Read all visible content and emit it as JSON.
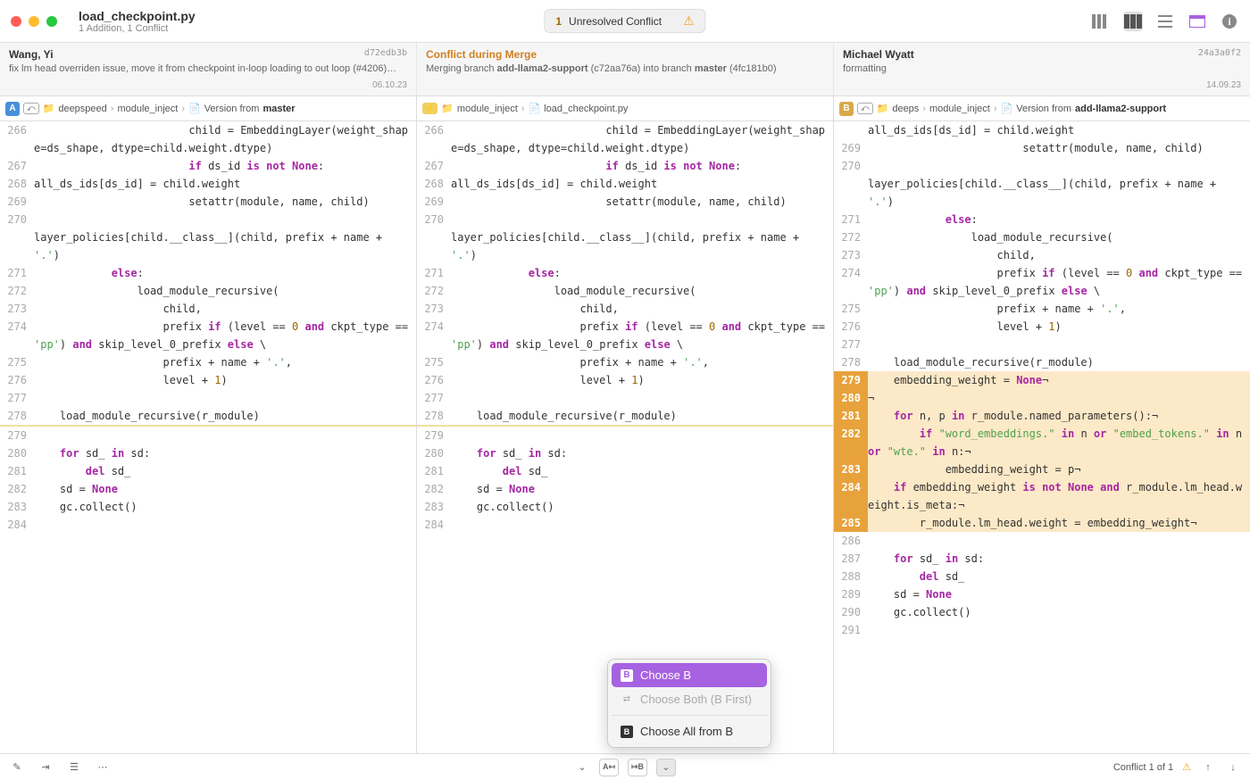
{
  "colors": {
    "traffic_close": "#ff5f57",
    "traffic_min": "#febc2e",
    "traffic_max": "#28c840",
    "warn": "#f0a020",
    "purple_sel": "#a662e0",
    "orange_hl_gutter": "#e8a23c",
    "orange_hl_bg": "#fce9c7",
    "badge_a": "#4a90d9",
    "badge_b": "#d9a94a",
    "keyword": "#a626a4",
    "string": "#50a14f",
    "constant": "#a626a4"
  },
  "title": {
    "filename": "load_checkpoint.py",
    "subtitle": "1 Addition, 1 Conflict"
  },
  "conflict_pill": {
    "count": "1",
    "label": "Unresolved Conflict"
  },
  "commits": {
    "left": {
      "author": "Wang, Yi",
      "message": "fix lm head overriden issue, move it from checkpoint in-loop loading to out loop (#4206)…",
      "hash": "d72edb3b",
      "date": "06.10.23"
    },
    "mid": {
      "title": "Conflict during Merge",
      "message_prefix": "Merging branch ",
      "branch1": "add-llama2-support",
      "branch1_hash": " (c72aa76a)",
      "into": " into branch ",
      "branch2": "master",
      "message_suffix": " (4fc181b0)"
    },
    "right": {
      "author": "Michael Wyatt",
      "message": "formatting",
      "hash": "24a3a0f2",
      "date": "14.09.23"
    }
  },
  "crumbs": {
    "left": {
      "badge": "A",
      "p1": "deepspeed",
      "p2": "module_inject",
      "p3_prefix": "Version from ",
      "p3_strong": "master"
    },
    "mid": {
      "p1": "module_inject",
      "p2": "load_checkpoint.py"
    },
    "right": {
      "badge": "B",
      "p1": "deeps",
      "p2": "module_inject",
      "p3_prefix": "Version from ",
      "p3_strong": "add-llama2-support"
    }
  },
  "code": {
    "left": [
      {
        "n": 266,
        "t": "                        child = EmbeddingLayer(weight_shape=ds_shape, dtype=child.weight.dtype)"
      },
      {
        "n": 267,
        "t": "                        <kw>if</kw> ds_id <kw>is not</kw> <const>None</const>:"
      },
      {
        "n": 268,
        "t": "all_ds_ids[ds_id] = child.weight"
      },
      {
        "n": 269,
        "t": "                        setattr(module, name, child)"
      },
      {
        "n": 270,
        "t": ""
      },
      {
        "n": "",
        "t": "layer_policies[child.__class__](child, prefix + name + <str>'.'</str>)"
      },
      {
        "n": 271,
        "t": "            <kw>else</kw>:"
      },
      {
        "n": 272,
        "t": "                load_module_recursive("
      },
      {
        "n": 273,
        "t": "                    child,"
      },
      {
        "n": 274,
        "t": "                    prefix <kw>if</kw> (level == <num>0</num> <kw>and</kw> ckpt_type == <str>'pp'</str>) <kw>and</kw> skip_level_0_prefix <kw>else</kw> \\"
      },
      {
        "n": 275,
        "t": "                    prefix + name + <str>'.'</str>,"
      },
      {
        "n": 276,
        "t": "                    level + <num>1</num>)"
      },
      {
        "n": 277,
        "t": ""
      },
      {
        "n": 278,
        "t": "    load_module_recursive(r_module)",
        "cls": "border-bottom-yellow"
      },
      {
        "n": 279,
        "t": ""
      },
      {
        "n": 280,
        "t": "    <kw>for</kw> sd_ <kw>in</kw> sd:"
      },
      {
        "n": 281,
        "t": "        <kw>del</kw> sd_"
      },
      {
        "n": 282,
        "t": "    sd = <const>None</const>"
      },
      {
        "n": 283,
        "t": "    gc.collect()"
      },
      {
        "n": 284,
        "t": ""
      }
    ],
    "mid": [
      {
        "n": 266,
        "t": "                        child = EmbeddingLayer(weight_shape=ds_shape, dtype=child.weight.dtype)"
      },
      {
        "n": 267,
        "t": "                        <kw>if</kw> ds_id <kw>is not</kw> <const>None</const>:"
      },
      {
        "n": 268,
        "t": "all_ds_ids[ds_id] = child.weight"
      },
      {
        "n": 269,
        "t": "                        setattr(module, name, child)"
      },
      {
        "n": 270,
        "t": ""
      },
      {
        "n": "",
        "t": "layer_policies[child.__class__](child, prefix + name + <str>'.'</str>)"
      },
      {
        "n": 271,
        "t": "            <kw>else</kw>:"
      },
      {
        "n": 272,
        "t": "                load_module_recursive("
      },
      {
        "n": 273,
        "t": "                    child,"
      },
      {
        "n": 274,
        "t": "                    prefix <kw>if</kw> (level == <num>0</num> <kw>and</kw> ckpt_type == <str>'pp'</str>) <kw>and</kw> skip_level_0_prefix <kw>else</kw> \\"
      },
      {
        "n": 275,
        "t": "                    prefix + name + <str>'.'</str>,"
      },
      {
        "n": 276,
        "t": "                    level + <num>1</num>)"
      },
      {
        "n": 277,
        "t": ""
      },
      {
        "n": 278,
        "t": "    load_module_recursive(r_module)",
        "cls": "border-bottom-yellow"
      },
      {
        "n": 279,
        "t": ""
      },
      {
        "n": 280,
        "t": "    <kw>for</kw> sd_ <kw>in</kw> sd:"
      },
      {
        "n": 281,
        "t": "        <kw>del</kw> sd_"
      },
      {
        "n": 282,
        "t": "    sd = <const>None</const>"
      },
      {
        "n": 283,
        "t": "    gc.collect()"
      },
      {
        "n": 284,
        "t": ""
      }
    ],
    "right": [
      {
        "n": "",
        "t": "all_ds_ids[ds_id] = child.weight"
      },
      {
        "n": 269,
        "t": "                        setattr(module, name, child)"
      },
      {
        "n": 270,
        "t": ""
      },
      {
        "n": "",
        "t": "layer_policies[child.__class__](child, prefix + name + <str>'.'</str>)"
      },
      {
        "n": 271,
        "t": "            <kw>else</kw>:"
      },
      {
        "n": 272,
        "t": "                load_module_recursive("
      },
      {
        "n": 273,
        "t": "                    child,"
      },
      {
        "n": 274,
        "t": "                    prefix <kw>if</kw> (level == <num>0</num> <kw>and</kw> ckpt_type == <str>'pp'</str>) <kw>and</kw> skip_level_0_prefix <kw>else</kw> \\"
      },
      {
        "n": 275,
        "t": "                    prefix + name + <str>'.'</str>,"
      },
      {
        "n": 276,
        "t": "                    level + <num>1</num>)"
      },
      {
        "n": 277,
        "t": ""
      },
      {
        "n": 278,
        "t": "    load_module_recursive(r_module)"
      },
      {
        "n": 279,
        "t": "    embedding_weight = <const>None</const>¬",
        "cls": "hl-orange"
      },
      {
        "n": 280,
        "t": "¬",
        "cls": "hl-orange"
      },
      {
        "n": 281,
        "t": "    <kw>for</kw> n, p <kw>in</kw> r_module.named_parameters():¬",
        "cls": "hl-orange"
      },
      {
        "n": 282,
        "t": "        <kw>if</kw> <str>\"word_embeddings.\"</str> <kw>in</kw> n <kw>or</kw> <str>\"embed_tokens.\"</str> <kw>in</kw> n <kw>or</kw> <str>\"wte.\"</str> <kw>in</kw> n:¬",
        "cls": "hl-orange"
      },
      {
        "n": 283,
        "t": "            embedding_weight = p¬",
        "cls": "hl-orange"
      },
      {
        "n": 284,
        "t": "    <kw>if</kw> embedding_weight <kw>is not</kw> <const>None</const> <kw>and</kw> r_module.lm_head.weight.is_meta:¬",
        "cls": "hl-orange"
      },
      {
        "n": 285,
        "t": "        r_module.lm_head.weight = embedding_weight¬",
        "cls": "hl-orange"
      },
      {
        "n": 286,
        "t": ""
      },
      {
        "n": 287,
        "t": "    <kw>for</kw> sd_ <kw>in</kw> sd:"
      },
      {
        "n": 288,
        "t": "        <kw>del</kw> sd_"
      },
      {
        "n": 289,
        "t": "    sd = <const>None</const>"
      },
      {
        "n": 290,
        "t": "    gc.collect()"
      },
      {
        "n": 291,
        "t": ""
      }
    ]
  },
  "choose_menu": {
    "item1": "Choose B",
    "item2": "Choose Both (B First)",
    "item3": "Choose All from B"
  },
  "status": {
    "conflict_text": "Conflict 1 of 1"
  }
}
